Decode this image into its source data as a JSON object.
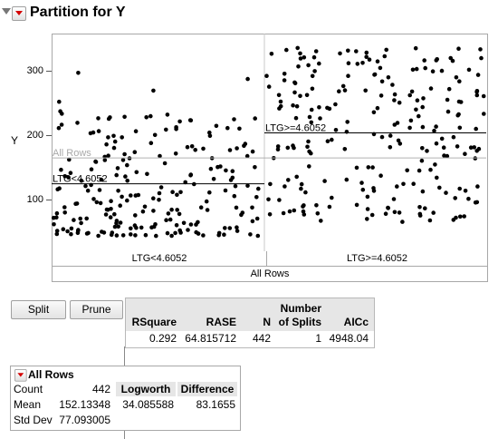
{
  "title": "Partition for Y",
  "plot": {
    "y_axis_label": "Y",
    "y_ticks": [
      "100",
      "200",
      "300"
    ],
    "y_range": [
      0,
      355
    ],
    "overall_mean": 152.13348,
    "overall_label": "All Rows",
    "left_group": {
      "label": "LTG<4.6052",
      "mean": 110,
      "fraction": 0.49
    },
    "right_group": {
      "label": "LTG>=4.6052",
      "mean": 193
    }
  },
  "split_bar": {
    "left": "LTG<4.6052",
    "right": "LTG>=4.6052"
  },
  "all_rows_bar": "All Rows",
  "buttons": {
    "split": "Split",
    "prune": "Prune"
  },
  "stats": {
    "headers": {
      "rsquare": "RSquare",
      "rase": "RASE",
      "n": "N",
      "splits_line1": "Number",
      "splits_line2": "of Splits",
      "aicc": "AICc"
    },
    "values": {
      "rsquare": "0.292",
      "rase": "64.815712",
      "n": "442",
      "splits": "1",
      "aicc": "4948.04"
    }
  },
  "node": {
    "title": "All Rows",
    "count_label": "Count",
    "count": "442",
    "mean_label": "Mean",
    "mean": "152.13348",
    "std_label": "Std Dev",
    "std": "77.093005",
    "logworth_label": "Logworth",
    "logworth": "34.085588",
    "difference_label": "Difference",
    "difference": "83.1655"
  },
  "colors": {
    "accent_red": "#d40000",
    "panel_gray": "#e6e6e6",
    "frame": "#a8a8a8"
  }
}
